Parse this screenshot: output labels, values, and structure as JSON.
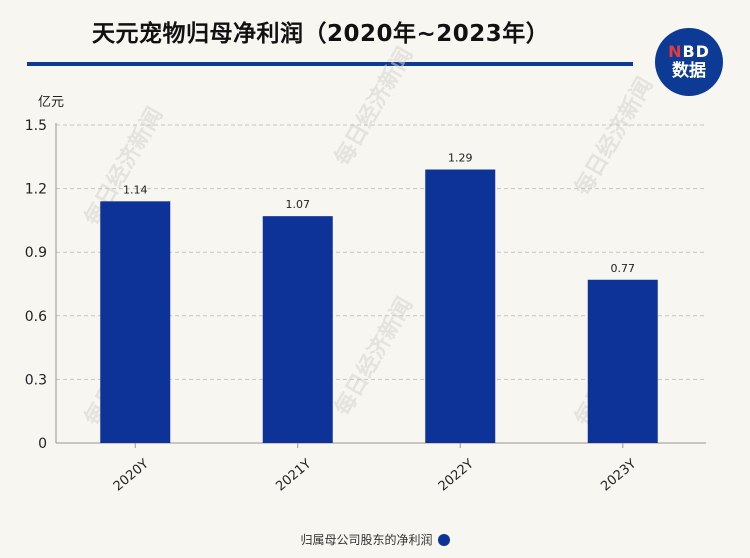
{
  "title": "天元宠物归母净利润（2020年~2023年）",
  "logo": {
    "line1_n": "N",
    "line1_rest": "BD",
    "line2": "数据"
  },
  "watermark": "每日经济新闻",
  "colors": {
    "bar": "#0d3399",
    "accent": "#0d3a94",
    "logo_red": "#e23c3c"
  },
  "chart_data": {
    "type": "bar",
    "categories": [
      "2020Y",
      "2021Y",
      "2022Y",
      "2023Y"
    ],
    "series": [
      {
        "name": "归属母公司股东的净利润",
        "values": [
          1.14,
          1.07,
          1.29,
          0.77
        ]
      }
    ],
    "ylabel": "亿元",
    "ylim": [
      0,
      1.5
    ],
    "yticks": [
      "0",
      "0.3",
      "0.6",
      "0.9",
      "1.2",
      "1.5"
    ],
    "grid": true,
    "legend_position": "bottom-center"
  }
}
